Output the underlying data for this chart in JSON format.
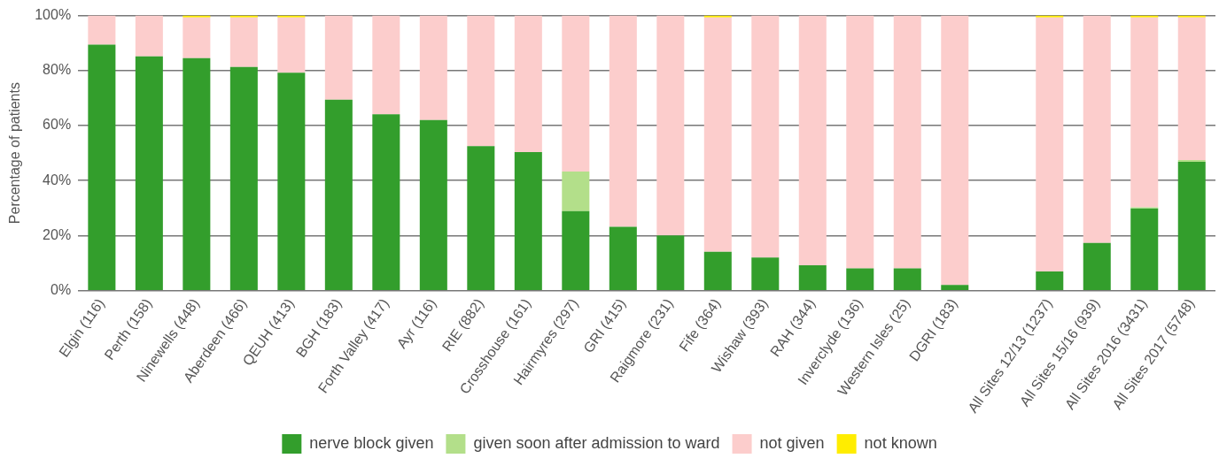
{
  "chart_data": {
    "type": "bar",
    "stacked": true,
    "ylabel": "Percentage of patients",
    "categories": [
      "Elgin (116)",
      "Perth (158)",
      "Ninewells (448)",
      "Aberdeen (466)",
      "QEUH (413)",
      "BGH (183)",
      "Forth Valley (417)",
      "Ayr (116)",
      "RIE (882)",
      "Crosshouse (161)",
      "Hairmyres (297)",
      "GRI (415)",
      "Raigmore (231)",
      "Fife (364)",
      "Wishaw (393)",
      "RAH (344)",
      "Inverclyde (136)",
      "Western Isles (25)",
      "DGRI (183)",
      null,
      "All Sites 12/13 (1237)",
      "All Sites 15/16 (939)",
      "All Sites 2016 (3431)",
      "All Sites 2017 (5748)"
    ],
    "series": [
      {
        "name": "nerve block given",
        "color": "#339e2c",
        "values": [
          89.4,
          85.2,
          84.5,
          81.3,
          79.2,
          69.4,
          64.1,
          62.0,
          52.5,
          50.4,
          28.9,
          23.2,
          20.1,
          14.1,
          12.0,
          9.2,
          8.1,
          8.1,
          2.1,
          null,
          7.0,
          17.3,
          29.9,
          46.8
        ]
      },
      {
        "name": "given soon after admission to ward",
        "color": "#b3df8a",
        "values": [
          0,
          0,
          0,
          0,
          0,
          0,
          0,
          0,
          0,
          0,
          14.4,
          0,
          0,
          0,
          0,
          0,
          0,
          0,
          0,
          null,
          0,
          0,
          0.4,
          0.7
        ]
      },
      {
        "name": "not given",
        "color": "#fccdcc",
        "values": [
          10.6,
          14.8,
          14.8,
          18.0,
          20.1,
          30.6,
          35.9,
          38.0,
          47.5,
          49.6,
          56.7,
          76.8,
          79.9,
          85.2,
          88.0,
          90.8,
          91.9,
          91.9,
          97.9,
          null,
          92.3,
          82.7,
          69.0,
          51.8
        ]
      },
      {
        "name": "not known",
        "color": "#ffed00",
        "values": [
          0,
          0,
          0.7,
          0.7,
          0.7,
          0,
          0,
          0,
          0,
          0,
          0,
          0,
          0,
          0.7,
          0,
          0,
          0,
          0,
          0,
          null,
          0.7,
          0,
          0.7,
          0.7
        ]
      }
    ],
    "ylim": [
      0,
      100
    ],
    "yticks": [
      {
        "value": 0,
        "label": "0%"
      },
      {
        "value": 20,
        "label": "20%"
      },
      {
        "value": 40,
        "label": "40%"
      },
      {
        "value": 60,
        "label": "60%"
      },
      {
        "value": 80,
        "label": "80%"
      },
      {
        "value": 100,
        "label": "100%"
      }
    ],
    "grid": "y",
    "legend": "bottom"
  }
}
